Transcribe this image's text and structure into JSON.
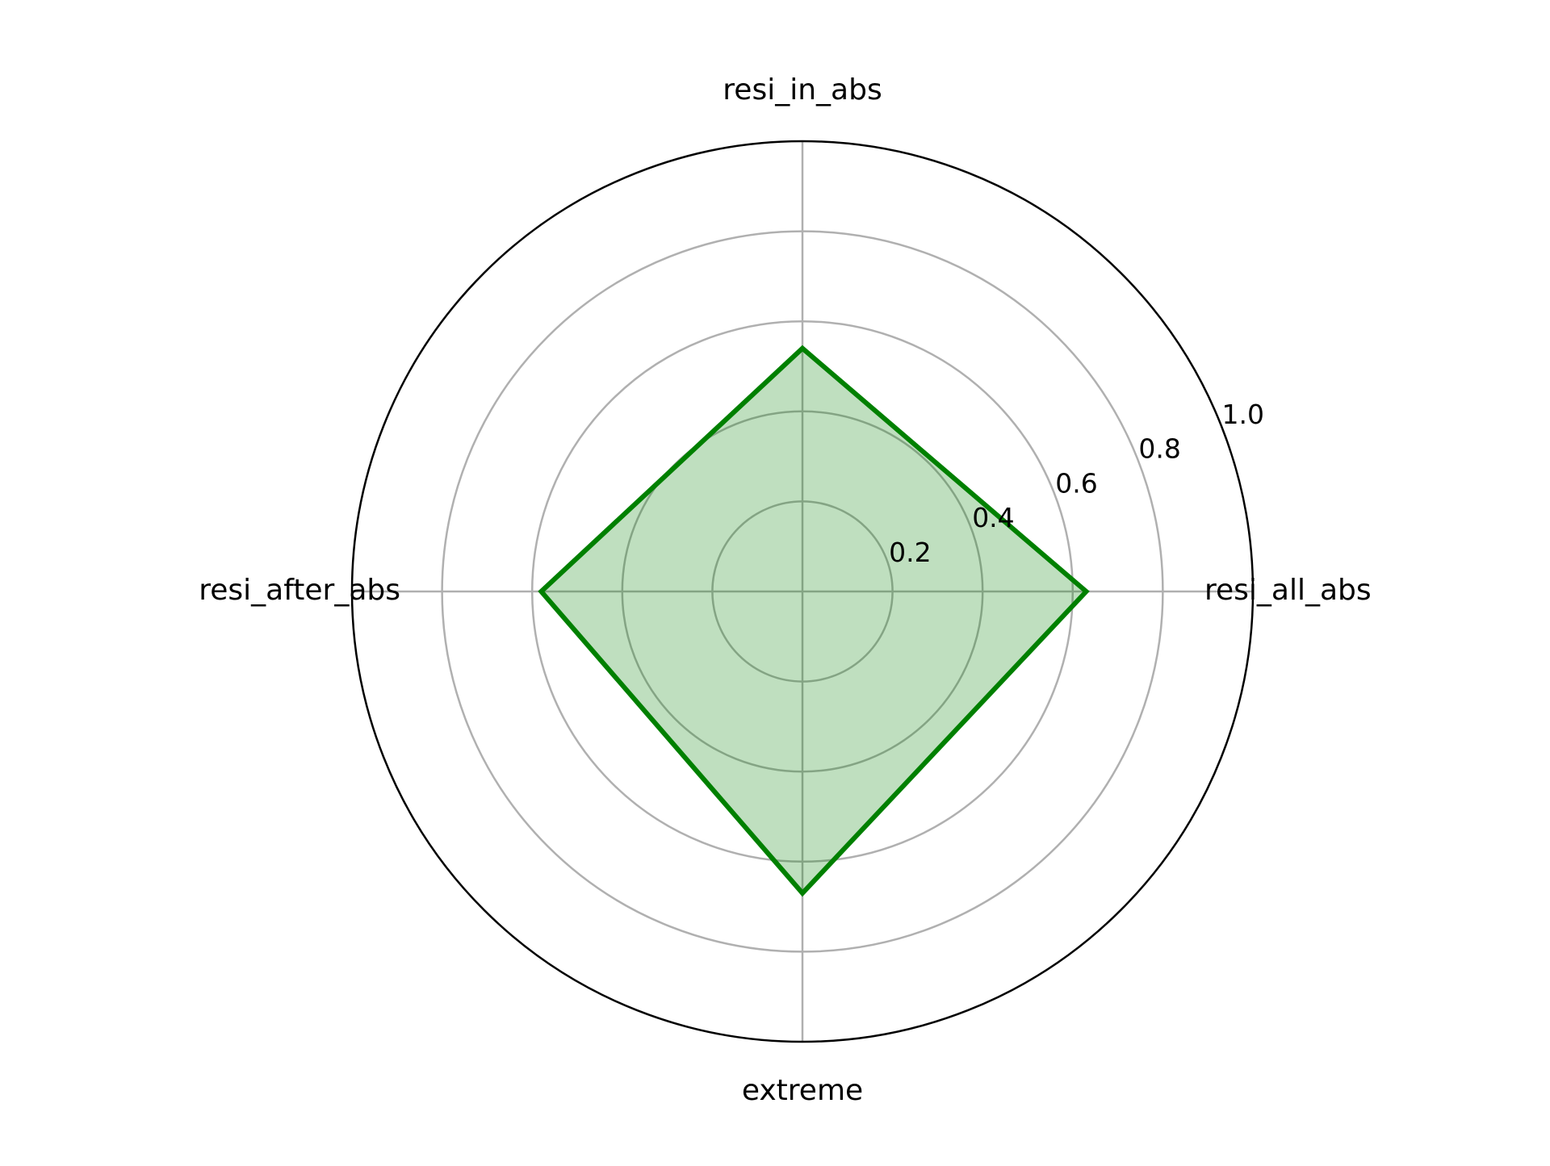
{
  "chart_data": {
    "type": "radar",
    "categories": [
      "resi_all_abs",
      "resi_in_abs",
      "resi_after_abs",
      "extreme"
    ],
    "series": [
      {
        "values": [
          0.63,
          0.54,
          0.58,
          0.67
        ],
        "line_color": "#008000",
        "fill_color": "#008000",
        "fill_opacity": 0.25
      }
    ],
    "rlim": [
      0,
      1.0
    ],
    "r_ticks": [
      0.2,
      0.4,
      0.6,
      0.8,
      1.0
    ],
    "r_tick_labels": [
      "0.2",
      "0.4",
      "0.6",
      "0.8",
      "1.0"
    ],
    "grid": true,
    "grid_color": "#b0b0b0",
    "frame_color": "#000000"
  }
}
